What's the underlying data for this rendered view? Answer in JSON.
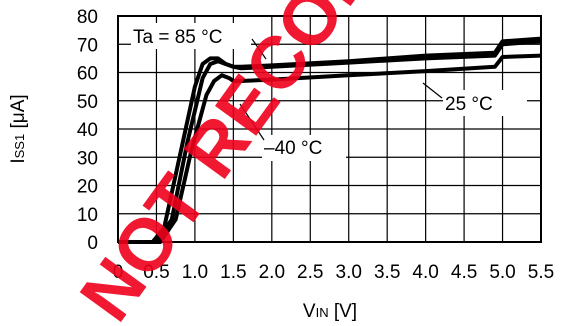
{
  "watermark": "NOT RECOMMENDED",
  "chart_data": {
    "type": "line",
    "xlabel_main": "V",
    "xlabel_sub": "IN",
    "xlabel_unit": " [V]",
    "ylabel_main": "I",
    "ylabel_sub": "SS1",
    "ylabel_unit": " [μA]",
    "xlim": [
      0,
      5.5
    ],
    "ylim": [
      0,
      80
    ],
    "x_ticks": [
      "0",
      "0.5",
      "1.0",
      "1.5",
      "2.0",
      "2.5",
      "3.0",
      "3.5",
      "4.0",
      "4.5",
      "5.0",
      "5.5"
    ],
    "y_ticks": [
      "0",
      "10",
      "20",
      "30",
      "40",
      "50",
      "60",
      "70",
      "80"
    ],
    "grid": true,
    "series": [
      {
        "name": "Ta = 85 °C",
        "x": [
          0,
          0.45,
          0.6,
          0.8,
          1.0,
          1.1,
          1.2,
          1.3,
          1.4,
          1.5,
          1.6,
          2.0,
          3.0,
          4.0,
          4.9,
          5.0,
          5.5
        ],
        "y": [
          0,
          0,
          5,
          30,
          55,
          63,
          65,
          65,
          63,
          62,
          62,
          62.5,
          64,
          66,
          67,
          71,
          72
        ]
      },
      {
        "name": "25 °C",
        "x": [
          0,
          0.5,
          0.7,
          0.9,
          1.1,
          1.2,
          1.3,
          1.4,
          1.5,
          1.6,
          2.0,
          3.0,
          4.0,
          4.9,
          5.0,
          5.5
        ],
        "y": [
          0,
          0,
          8,
          35,
          58,
          63,
          64,
          63,
          62,
          61.5,
          62,
          63.5,
          65,
          66,
          70,
          71
        ]
      },
      {
        "name": "–40 °C",
        "x": [
          0,
          0.55,
          0.75,
          0.95,
          1.15,
          1.25,
          1.35,
          1.45,
          1.5,
          1.6,
          2.0,
          3.0,
          4.0,
          4.9,
          5.0,
          5.5
        ],
        "y": [
          0,
          0,
          8,
          32,
          52,
          57,
          59,
          58,
          57,
          57,
          57.5,
          59,
          60.5,
          62,
          65.5,
          66
        ]
      }
    ]
  }
}
